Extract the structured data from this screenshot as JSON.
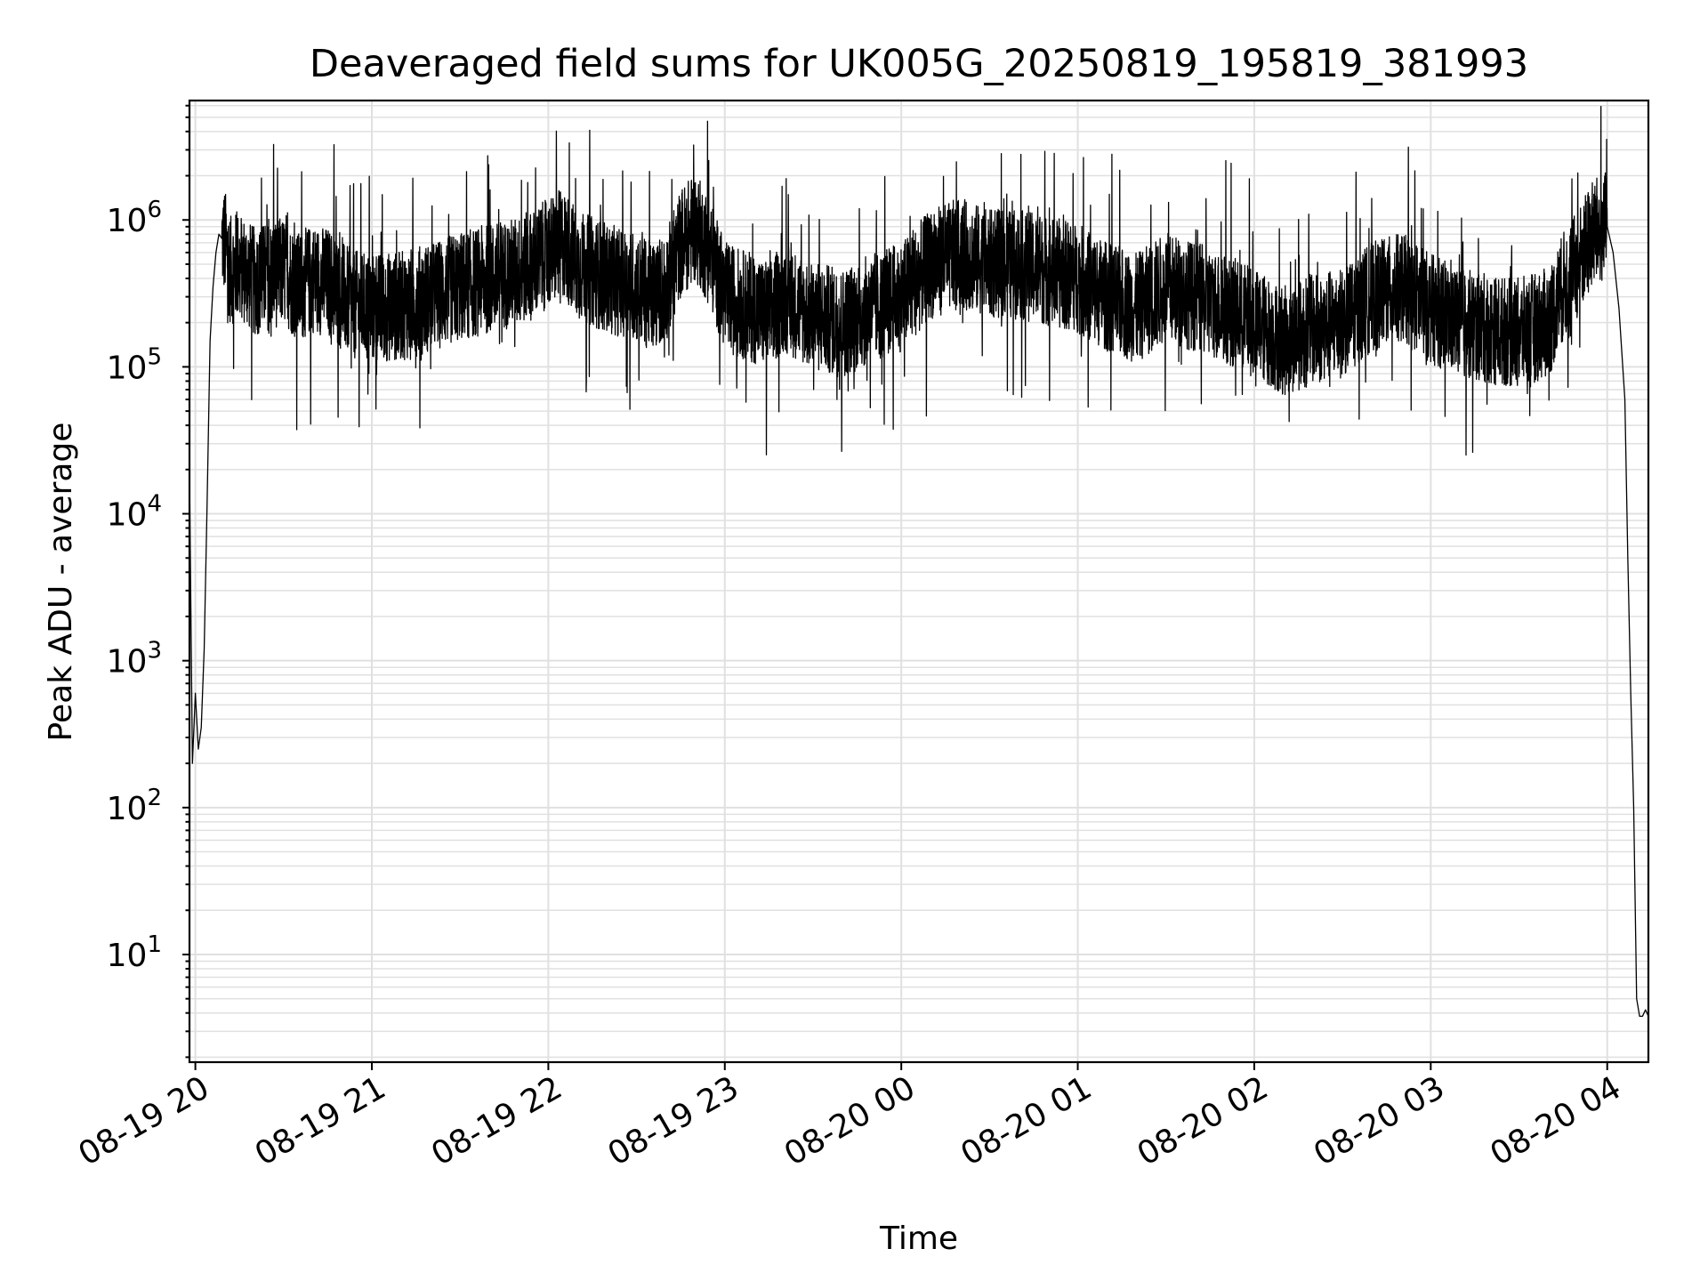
{
  "chart_data": {
    "type": "line",
    "title": "Deaveraged field sums for UK005G_20250819_195819_381993",
    "xlabel": "Time",
    "ylabel": "Peak ADU - average",
    "yscale": "log",
    "ylim": [
      1.85,
      6500000
    ],
    "xlim": [
      "2025-08-19 19:58",
      "2025-08-20 04:14"
    ],
    "grid": true,
    "line_color": "#000000",
    "grid_color": "#e0e0e0",
    "x_ticks": [
      "08-19 20",
      "08-19 21",
      "08-19 22",
      "08-19 23",
      "08-20 00",
      "08-20 01",
      "08-20 02",
      "08-20 03",
      "08-20 04"
    ],
    "y_ticks": [
      {
        "base": "10",
        "exp": "1",
        "value": 10
      },
      {
        "base": "10",
        "exp": "2",
        "value": 100
      },
      {
        "base": "10",
        "exp": "3",
        "value": 1000
      },
      {
        "base": "10",
        "exp": "4",
        "value": 10000
      },
      {
        "base": "10",
        "exp": "5",
        "value": 100000
      },
      {
        "base": "10",
        "exp": "6",
        "value": 1000000
      }
    ],
    "series": [
      {
        "x": [
          "2025-08-19 19:58",
          "2025-08-19 19:59",
          "2025-08-19 20:00",
          "2025-08-19 20:01",
          "2025-08-19 20:02",
          "2025-08-19 20:03",
          "2025-08-19 20:04",
          "2025-08-19 20:05",
          "2025-08-19 20:06",
          "2025-08-19 20:07",
          "2025-08-19 20:08",
          "2025-08-19 20:10",
          "2025-08-19 20:12",
          "2025-08-19 20:15",
          "2025-08-19 20:20",
          "2025-08-19 20:25",
          "2025-08-19 20:30",
          "2025-08-19 20:35",
          "2025-08-19 20:40",
          "2025-08-19 20:45",
          "2025-08-19 20:50",
          "2025-08-19 20:52",
          "2025-08-19 20:55",
          "2025-08-19 21:00",
          "2025-08-19 21:10",
          "2025-08-19 21:20",
          "2025-08-19 21:30",
          "2025-08-19 21:40",
          "2025-08-19 21:50",
          "2025-08-19 21:55",
          "2025-08-19 22:00",
          "2025-08-19 22:05",
          "2025-08-19 22:10",
          "2025-08-19 22:20",
          "2025-08-19 22:30",
          "2025-08-19 22:35",
          "2025-08-19 22:40",
          "2025-08-19 22:45",
          "2025-08-19 22:50",
          "2025-08-19 22:55",
          "2025-08-19 23:00",
          "2025-08-19 23:10",
          "2025-08-19 23:15",
          "2025-08-19 23:20",
          "2025-08-19 23:30",
          "2025-08-19 23:40",
          "2025-08-19 23:50",
          "2025-08-20 00:00",
          "2025-08-20 00:10",
          "2025-08-20 00:20",
          "2025-08-20 00:30",
          "2025-08-20 00:40",
          "2025-08-20 00:50",
          "2025-08-20 01:00",
          "2025-08-20 01:10",
          "2025-08-20 01:20",
          "2025-08-20 01:30",
          "2025-08-20 01:40",
          "2025-08-20 01:50",
          "2025-08-20 02:00",
          "2025-08-20 02:10",
          "2025-08-20 02:20",
          "2025-08-20 02:30",
          "2025-08-20 02:40",
          "2025-08-20 02:50",
          "2025-08-20 03:00",
          "2025-08-20 03:10",
          "2025-08-20 03:20",
          "2025-08-20 03:30",
          "2025-08-20 03:40",
          "2025-08-20 03:45",
          "2025-08-20 03:50",
          "2025-08-20 03:55",
          "2025-08-20 04:00",
          "2025-08-20 04:02",
          "2025-08-20 04:04",
          "2025-08-20 04:06",
          "2025-08-20 04:07",
          "2025-08-20 04:08",
          "2025-08-20 04:09",
          "2025-08-20 04:10",
          "2025-08-20 04:11",
          "2025-08-20 04:12",
          "2025-08-20 04:13",
          "2025-08-20 04:14"
        ],
        "y": [
          20000,
          200,
          600,
          250,
          350,
          1200,
          12000,
          150000,
          350000,
          600000,
          800000,
          700000,
          450000,
          500000,
          380000,
          420000,
          450000,
          350000,
          400000,
          380000,
          300000,
          280000,
          260000,
          250000,
          260000,
          300000,
          350000,
          400000,
          450000,
          500000,
          600000,
          700000,
          500000,
          400000,
          350000,
          300000,
          350000,
          700000,
          900000,
          600000,
          300000,
          250000,
          220000,
          300000,
          220000,
          200000,
          250000,
          300000,
          500000,
          600000,
          500000,
          500000,
          450000,
          400000,
          300000,
          250000,
          350000,
          300000,
          250000,
          200000,
          150000,
          180000,
          200000,
          300000,
          350000,
          250000,
          200000,
          180000,
          170000,
          200000,
          350000,
          500000,
          800000,
          900000,
          600000,
          250000,
          60000,
          5000,
          600,
          100,
          5,
          3.8,
          3.8,
          4.2,
          3.8
        ]
      }
    ]
  }
}
